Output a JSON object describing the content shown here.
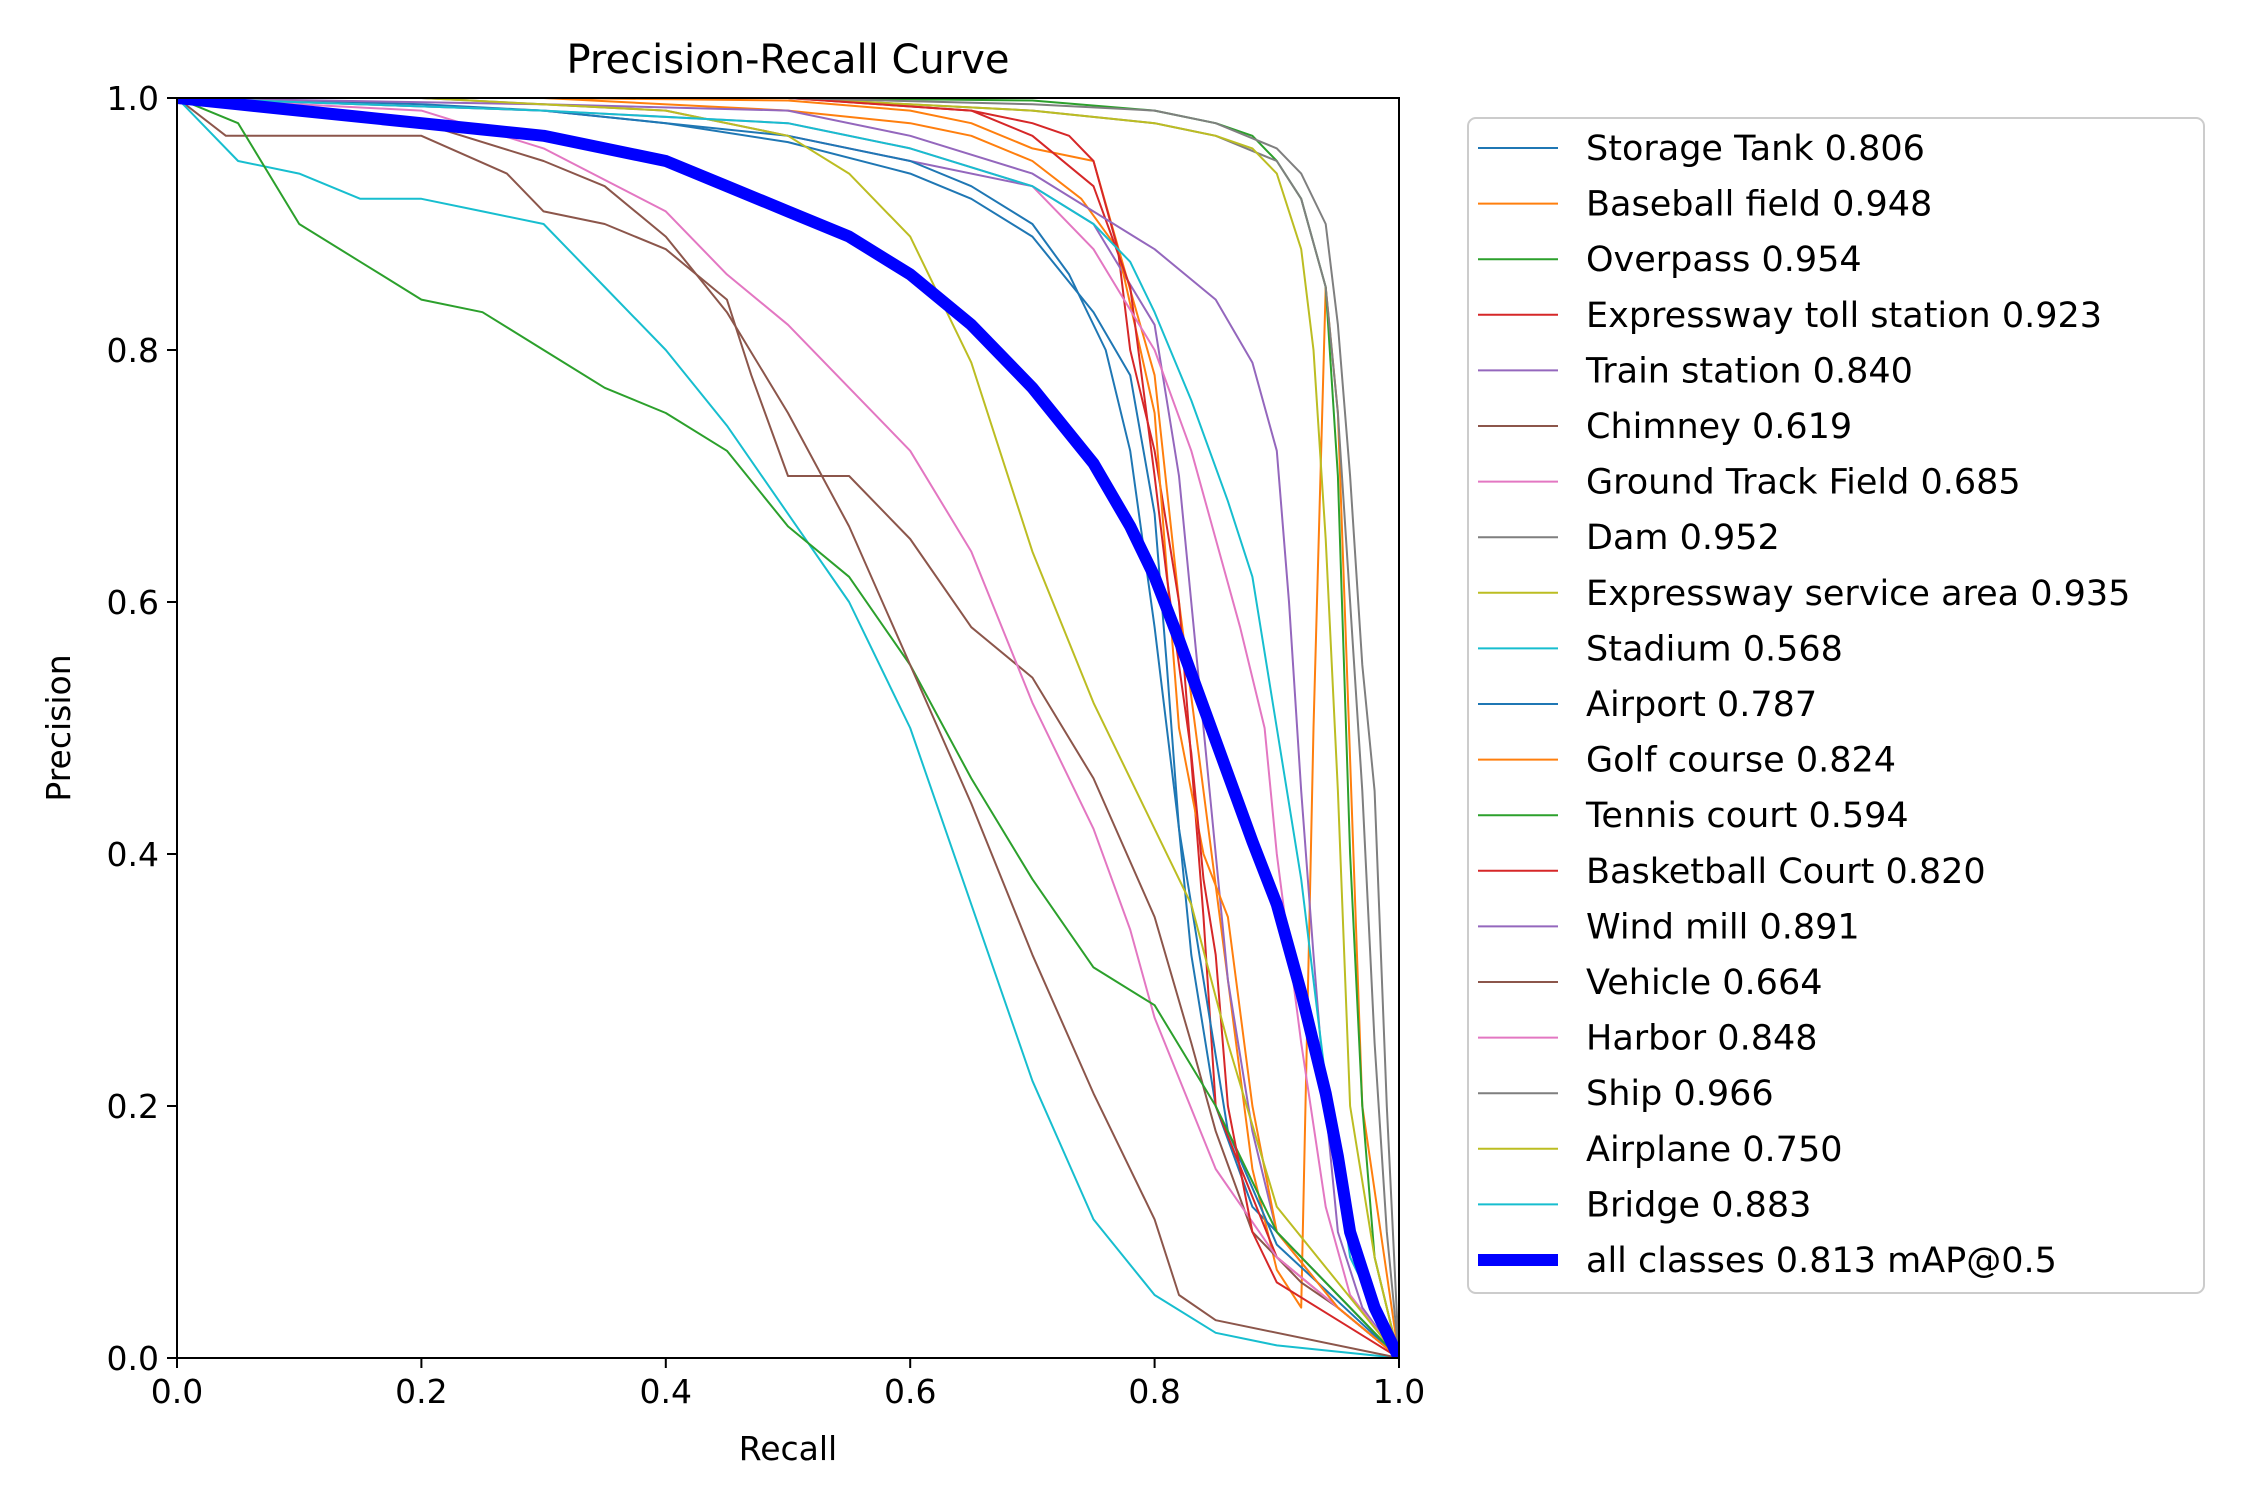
{
  "chart_data": {
    "type": "line",
    "title": "Precision-Recall Curve",
    "xlabel": "Recall",
    "ylabel": "Precision",
    "xlim": [
      0,
      1
    ],
    "ylim": [
      0,
      1
    ],
    "xticks": [
      "0.0",
      "0.2",
      "0.4",
      "0.6",
      "0.8",
      "1.0"
    ],
    "yticks": [
      "0.0",
      "0.2",
      "0.4",
      "0.6",
      "0.8",
      "1.0"
    ],
    "grid": false,
    "legend_position": "outside-right",
    "series": [
      {
        "name": "Storage Tank 0.806",
        "color": "#1f77b4",
        "width": 1,
        "x": [
          0,
          0.1,
          0.2,
          0.3,
          0.4,
          0.5,
          0.6,
          0.65,
          0.7,
          0.75,
          0.78,
          0.8,
          0.81,
          0.82,
          0.83,
          0.85,
          0.88,
          0.92,
          1.0
        ],
        "y": [
          1,
          0.998,
          0.995,
          0.99,
          0.98,
          0.965,
          0.94,
          0.92,
          0.89,
          0.83,
          0.78,
          0.67,
          0.55,
          0.42,
          0.32,
          0.2,
          0.12,
          0.08,
          0.0
        ]
      },
      {
        "name": "Baseball field 0.948",
        "color": "#ff7f0e",
        "width": 1,
        "x": [
          0,
          0.3,
          0.5,
          0.6,
          0.65,
          0.7,
          0.75,
          0.8,
          0.82,
          0.84,
          0.86,
          0.88,
          0.9,
          0.92,
          0.93,
          0.94,
          0.95,
          0.97,
          1.0
        ],
        "y": [
          1,
          1,
          0.998,
          0.99,
          0.98,
          0.96,
          0.95,
          0.78,
          0.6,
          0.45,
          0.3,
          0.15,
          0.07,
          0.04,
          0.5,
          0.85,
          0.75,
          0.2,
          0.0
        ]
      },
      {
        "name": "Overpass 0.954",
        "color": "#2ca02c",
        "width": 1,
        "x": [
          0,
          0.3,
          0.5,
          0.7,
          0.8,
          0.85,
          0.88,
          0.9,
          0.92,
          0.94,
          0.95,
          0.96,
          0.97,
          0.98,
          1.0
        ],
        "y": [
          1,
          1,
          1,
          0.998,
          0.99,
          0.98,
          0.97,
          0.95,
          0.92,
          0.85,
          0.7,
          0.4,
          0.2,
          0.08,
          0.0
        ]
      },
      {
        "name": "Expressway toll station 0.923",
        "color": "#d62728",
        "width": 1,
        "x": [
          0,
          0.3,
          0.5,
          0.65,
          0.7,
          0.73,
          0.75,
          0.77,
          0.78,
          0.8,
          0.82,
          0.84,
          0.85,
          0.9,
          0.95,
          1.0
        ],
        "y": [
          1,
          1,
          1,
          0.99,
          0.98,
          0.97,
          0.95,
          0.88,
          0.8,
          0.72,
          0.6,
          0.35,
          0.2,
          0.08,
          0.04,
          0.0
        ]
      },
      {
        "name": "Train station 0.840",
        "color": "#9467bd",
        "width": 1,
        "x": [
          0,
          0.2,
          0.4,
          0.5,
          0.6,
          0.7,
          0.75,
          0.8,
          0.82,
          0.84,
          0.86,
          0.88,
          0.9,
          0.95,
          1.0
        ],
        "y": [
          1,
          1,
          0.99,
          0.97,
          0.95,
          0.93,
          0.9,
          0.82,
          0.7,
          0.5,
          0.3,
          0.18,
          0.1,
          0.04,
          0.0
        ]
      },
      {
        "name": "Chimney 0.619",
        "color": "#8c564b",
        "width": 1,
        "x": [
          0,
          0.04,
          0.1,
          0.2,
          0.27,
          0.3,
          0.35,
          0.4,
          0.45,
          0.47,
          0.5,
          0.55,
          0.6,
          0.65,
          0.7,
          0.75,
          0.8,
          0.83,
          0.85,
          0.88,
          0.92,
          0.95,
          1.0
        ],
        "y": [
          1,
          0.97,
          0.97,
          0.97,
          0.94,
          0.91,
          0.9,
          0.88,
          0.84,
          0.78,
          0.7,
          0.7,
          0.65,
          0.58,
          0.54,
          0.46,
          0.35,
          0.25,
          0.18,
          0.1,
          0.06,
          0.04,
          0.0
        ]
      },
      {
        "name": "Ground Track Field 0.685",
        "color": "#e377c2",
        "width": 1,
        "x": [
          0,
          0.2,
          0.3,
          0.4,
          0.45,
          0.5,
          0.55,
          0.6,
          0.65,
          0.7,
          0.75,
          0.78,
          0.8,
          0.85,
          0.9,
          0.95,
          1.0
        ],
        "y": [
          1,
          0.99,
          0.96,
          0.91,
          0.86,
          0.82,
          0.77,
          0.72,
          0.64,
          0.52,
          0.42,
          0.34,
          0.27,
          0.15,
          0.08,
          0.04,
          0.0
        ]
      },
      {
        "name": "Dam 0.952",
        "color": "#7f7f7f",
        "width": 1,
        "x": [
          0,
          0.5,
          0.7,
          0.8,
          0.85,
          0.9,
          0.92,
          0.94,
          0.95,
          0.96,
          0.97,
          0.98,
          0.99,
          1.0
        ],
        "y": [
          1,
          1,
          0.99,
          0.98,
          0.97,
          0.95,
          0.92,
          0.85,
          0.75,
          0.6,
          0.45,
          0.25,
          0.1,
          0.0
        ]
      },
      {
        "name": "Expressway service area 0.935",
        "color": "#bcbd22",
        "width": 1,
        "x": [
          0,
          0.3,
          0.5,
          0.7,
          0.8,
          0.85,
          0.88,
          0.9,
          0.92,
          0.93,
          0.94,
          0.95,
          0.96,
          0.98,
          1.0
        ],
        "y": [
          1,
          1,
          1,
          0.99,
          0.98,
          0.97,
          0.96,
          0.94,
          0.88,
          0.8,
          0.65,
          0.45,
          0.2,
          0.08,
          0.0
        ]
      },
      {
        "name": "Stadium 0.568",
        "color": "#17becf",
        "width": 1,
        "x": [
          0,
          0.05,
          0.1,
          0.15,
          0.2,
          0.25,
          0.3,
          0.35,
          0.4,
          0.45,
          0.5,
          0.55,
          0.6,
          0.65,
          0.7,
          0.75,
          0.8,
          0.85,
          0.9,
          1.0
        ],
        "y": [
          1,
          0.95,
          0.94,
          0.92,
          0.92,
          0.91,
          0.9,
          0.85,
          0.8,
          0.74,
          0.67,
          0.6,
          0.5,
          0.36,
          0.22,
          0.11,
          0.05,
          0.02,
          0.01,
          0.0
        ]
      },
      {
        "name": "Airport 0.787",
        "color": "#1f77b4",
        "width": 1,
        "x": [
          0,
          0.3,
          0.5,
          0.6,
          0.65,
          0.7,
          0.73,
          0.76,
          0.78,
          0.8,
          0.82,
          0.84,
          0.86,
          0.9,
          1.0
        ],
        "y": [
          1,
          0.99,
          0.97,
          0.95,
          0.93,
          0.9,
          0.86,
          0.8,
          0.72,
          0.58,
          0.42,
          0.3,
          0.18,
          0.09,
          0.0
        ]
      },
      {
        "name": "Golf course 0.824",
        "color": "#ff7f0e",
        "width": 1,
        "x": [
          0,
          0.3,
          0.5,
          0.6,
          0.65,
          0.7,
          0.74,
          0.77,
          0.8,
          0.82,
          0.84,
          0.86,
          0.88,
          0.9,
          0.95,
          1.0
        ],
        "y": [
          1,
          1,
          0.99,
          0.98,
          0.97,
          0.95,
          0.92,
          0.88,
          0.75,
          0.5,
          0.4,
          0.35,
          0.2,
          0.1,
          0.04,
          0.0
        ]
      },
      {
        "name": "Tennis court 0.594",
        "color": "#2ca02c",
        "width": 1,
        "x": [
          0,
          0.05,
          0.1,
          0.15,
          0.2,
          0.25,
          0.3,
          0.35,
          0.4,
          0.45,
          0.5,
          0.55,
          0.6,
          0.65,
          0.7,
          0.75,
          0.8,
          0.85,
          0.9,
          0.95,
          1.0
        ],
        "y": [
          1,
          0.98,
          0.9,
          0.87,
          0.84,
          0.83,
          0.8,
          0.77,
          0.75,
          0.72,
          0.66,
          0.62,
          0.55,
          0.46,
          0.38,
          0.31,
          0.28,
          0.2,
          0.1,
          0.05,
          0.0
        ]
      },
      {
        "name": "Basketball Court 0.820",
        "color": "#d62728",
        "width": 1,
        "x": [
          0,
          0.3,
          0.5,
          0.65,
          0.7,
          0.75,
          0.78,
          0.8,
          0.81,
          0.82,
          0.83,
          0.84,
          0.85,
          0.86,
          0.88,
          0.9,
          0.95,
          1.0
        ],
        "y": [
          1,
          1,
          1,
          0.99,
          0.97,
          0.93,
          0.85,
          0.7,
          0.62,
          0.55,
          0.48,
          0.38,
          0.32,
          0.2,
          0.1,
          0.06,
          0.03,
          0.0
        ]
      },
      {
        "name": "Wind mill 0.891",
        "color": "#9467bd",
        "width": 1,
        "x": [
          0,
          0.3,
          0.5,
          0.6,
          0.7,
          0.8,
          0.85,
          0.88,
          0.9,
          0.91,
          0.92,
          0.93,
          0.94,
          0.95,
          0.97,
          1.0
        ],
        "y": [
          1,
          0.995,
          0.99,
          0.97,
          0.94,
          0.88,
          0.84,
          0.79,
          0.72,
          0.6,
          0.45,
          0.32,
          0.2,
          0.1,
          0.04,
          0.0
        ]
      },
      {
        "name": "Vehicle 0.664",
        "color": "#8c564b",
        "width": 1,
        "x": [
          0,
          0.1,
          0.2,
          0.3,
          0.35,
          0.4,
          0.45,
          0.5,
          0.55,
          0.6,
          0.65,
          0.7,
          0.75,
          0.8,
          0.82,
          0.85,
          1.0
        ],
        "y": [
          1,
          0.99,
          0.98,
          0.95,
          0.93,
          0.89,
          0.83,
          0.75,
          0.66,
          0.55,
          0.44,
          0.32,
          0.21,
          0.11,
          0.05,
          0.03,
          0.0
        ]
      },
      {
        "name": "Harbor 0.848",
        "color": "#e377c2",
        "width": 1,
        "x": [
          0,
          0.3,
          0.5,
          0.6,
          0.7,
          0.75,
          0.8,
          0.83,
          0.85,
          0.87,
          0.89,
          0.9,
          0.92,
          0.94,
          0.96,
          1.0
        ],
        "y": [
          1,
          0.99,
          0.98,
          0.96,
          0.93,
          0.88,
          0.8,
          0.72,
          0.65,
          0.58,
          0.5,
          0.4,
          0.25,
          0.12,
          0.05,
          0.0
        ]
      },
      {
        "name": "Ship 0.966",
        "color": "#7f7f7f",
        "width": 1,
        "x": [
          0,
          0.5,
          0.7,
          0.8,
          0.85,
          0.9,
          0.92,
          0.94,
          0.95,
          0.96,
          0.97,
          0.98,
          0.99,
          1.0
        ],
        "y": [
          1,
          1,
          0.995,
          0.99,
          0.98,
          0.96,
          0.94,
          0.9,
          0.82,
          0.7,
          0.55,
          0.45,
          0.2,
          0.0
        ]
      },
      {
        "name": "Airplane 0.750",
        "color": "#bcbd22",
        "width": 1,
        "x": [
          0,
          0.2,
          0.4,
          0.5,
          0.55,
          0.6,
          0.65,
          0.7,
          0.75,
          0.8,
          0.83,
          0.86,
          0.9,
          0.95,
          1.0
        ],
        "y": [
          1,
          1,
          0.99,
          0.97,
          0.94,
          0.89,
          0.79,
          0.64,
          0.52,
          0.42,
          0.36,
          0.25,
          0.12,
          0.06,
          0.0
        ]
      },
      {
        "name": "Bridge 0.883",
        "color": "#17becf",
        "width": 1,
        "x": [
          0,
          0.3,
          0.5,
          0.6,
          0.7,
          0.75,
          0.78,
          0.8,
          0.83,
          0.86,
          0.88,
          0.9,
          0.92,
          0.94,
          0.96,
          1.0
        ],
        "y": [
          1,
          0.99,
          0.98,
          0.96,
          0.93,
          0.9,
          0.87,
          0.83,
          0.76,
          0.68,
          0.62,
          0.5,
          0.38,
          0.22,
          0.08,
          0.0
        ]
      },
      {
        "name": "all classes 0.813 mAP@0.5",
        "color": "#0000ff",
        "width": 6,
        "x": [
          0,
          0.05,
          0.1,
          0.15,
          0.2,
          0.25,
          0.3,
          0.35,
          0.4,
          0.45,
          0.5,
          0.55,
          0.6,
          0.65,
          0.7,
          0.75,
          0.78,
          0.8,
          0.82,
          0.85,
          0.88,
          0.9,
          0.92,
          0.94,
          0.95,
          0.96,
          0.97,
          0.98,
          0.99,
          1.0
        ],
        "y": [
          1,
          0.995,
          0.99,
          0.985,
          0.98,
          0.975,
          0.97,
          0.96,
          0.95,
          0.93,
          0.91,
          0.89,
          0.86,
          0.82,
          0.77,
          0.71,
          0.66,
          0.62,
          0.57,
          0.49,
          0.41,
          0.36,
          0.29,
          0.21,
          0.16,
          0.1,
          0.07,
          0.04,
          0.02,
          0.0
        ]
      }
    ]
  }
}
